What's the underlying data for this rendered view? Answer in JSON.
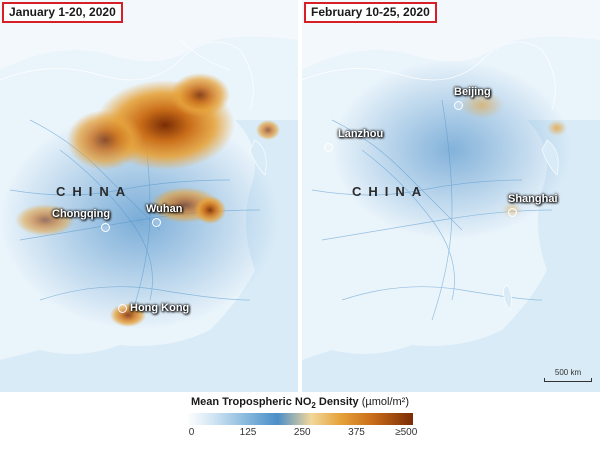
{
  "panels": [
    {
      "date_label": "January 1-20, 2020",
      "country_label": "CHINA",
      "cities": [
        "Chongqing",
        "Wuhan",
        "Hong Kong"
      ]
    },
    {
      "date_label": "February 10-25, 2020",
      "country_label": "CHINA",
      "cities": [
        "Beijing",
        "Lanzhou",
        "Shanghai"
      ],
      "scale_label": "500 km"
    }
  ],
  "legend": {
    "title_main": "Mean Tropospheric NO",
    "title_sub": "2",
    "title_after": " Density ",
    "unit": "(µmol/m²)",
    "ticks": [
      "0",
      "125",
      "250",
      "375",
      "≥500"
    ],
    "colors": [
      "#ffffff",
      "#7fb3da",
      "#4b8ec8",
      "#e6a23a",
      "#c96d19",
      "#7a2c05"
    ]
  }
}
